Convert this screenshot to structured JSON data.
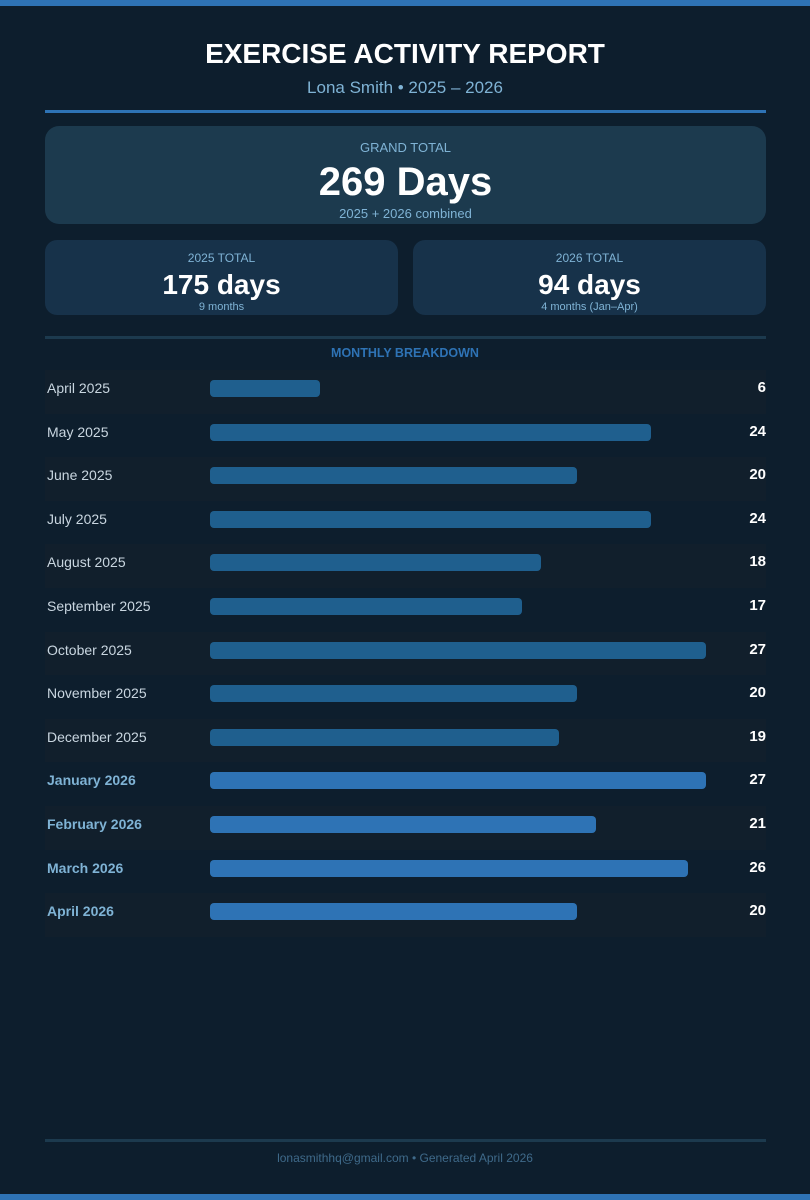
{
  "header": {
    "title": "EXERCISE ACTIVITY REPORT",
    "subtitle": "Lona Smith  •  2025 – 2026"
  },
  "grand_total": {
    "label": "GRAND TOTAL",
    "value": "269 Days",
    "sub": "2025 + 2026  combined"
  },
  "totals": [
    {
      "label": "2025 TOTAL",
      "value": "175 days",
      "sub": "9 months"
    },
    {
      "label": "2026 TOTAL",
      "value": "94 days",
      "sub": "4 months (Jan–Apr)"
    }
  ],
  "section_title": "MONTHLY BREAKDOWN",
  "colors": {
    "bar_2025": "#1f5f8e",
    "bar_2026": "#2e73b5",
    "accent": "#2e73b5",
    "background": "#0d1e2d"
  },
  "chart_data": {
    "type": "bar",
    "orientation": "horizontal",
    "categories": [
      "April 2025",
      "May 2025",
      "June 2025",
      "July 2025",
      "August 2025",
      "September 2025",
      "October 2025",
      "November 2025",
      "December 2025",
      "January 2026",
      "February 2026",
      "March 2026",
      "April 2026"
    ],
    "values": [
      6,
      24,
      20,
      24,
      18,
      17,
      27,
      20,
      19,
      27,
      21,
      26,
      20
    ],
    "highlight_year": [
      "2025",
      "2025",
      "2025",
      "2025",
      "2025",
      "2025",
      "2025",
      "2025",
      "2025",
      "2026",
      "2026",
      "2026",
      "2026"
    ],
    "title": "MONTHLY BREAKDOWN",
    "data_labels": true,
    "grid": false
  },
  "footer": "lonasmithhq@gmail.com  •  Generated April 2026"
}
